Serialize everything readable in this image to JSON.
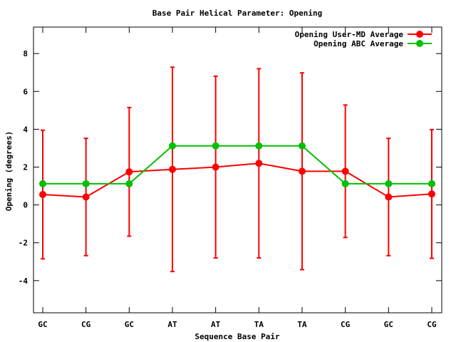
{
  "chart_data": {
    "type": "line",
    "title": "Base Pair Helical Parameter: Opening",
    "xlabel": "Sequence Base Pair",
    "ylabel": "Opening (degrees)",
    "categories": [
      "GC",
      "CG",
      "GC",
      "AT",
      "AT",
      "TA",
      "TA",
      "CG",
      "GC",
      "CG"
    ],
    "ylim": [
      -5.7,
      9.4
    ],
    "yticks": [
      -4,
      -2,
      0,
      2,
      4,
      6,
      8
    ],
    "grid": false,
    "legend_position": "top-right",
    "series": [
      {
        "name": "Opening User-MD Average",
        "color": "#ff0000",
        "values": [
          0.55,
          0.42,
          1.75,
          1.88,
          2.0,
          2.2,
          1.78,
          1.78,
          0.42,
          0.58
        ],
        "error": [
          3.4,
          3.1,
          3.4,
          5.4,
          4.8,
          5.0,
          5.2,
          3.5,
          3.1,
          3.4
        ]
      },
      {
        "name": "Opening ABC Average",
        "color": "#00c000",
        "values": [
          1.12,
          1.12,
          1.12,
          3.12,
          3.12,
          3.12,
          3.12,
          1.12,
          1.12,
          1.12
        ]
      }
    ]
  }
}
